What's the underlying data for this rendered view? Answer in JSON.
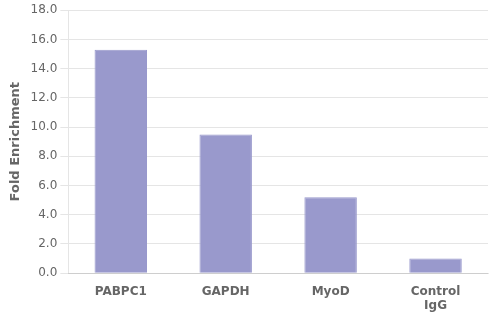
{
  "chart_data": {
    "type": "bar",
    "categories": [
      "PABPC1",
      "GAPDH",
      "MyoD",
      "Control\nIgG"
    ],
    "values": [
      15.3,
      9.5,
      5.2,
      1.0
    ],
    "color": "#9999CC",
    "ylabel": "Fold Enrichment",
    "ylim": [
      0,
      18.0
    ],
    "yticks": [
      {
        "value": 0.0,
        "label": "0.0"
      },
      {
        "value": 2.0,
        "label": "2.0"
      },
      {
        "value": 4.0,
        "label": "4.0"
      },
      {
        "value": 6.0,
        "label": "6.0"
      },
      {
        "value": 8.0,
        "label": "8.0"
      },
      {
        "value": 10.0,
        "label": "10.0"
      },
      {
        "value": 12.0,
        "label": "12.0"
      },
      {
        "value": 14.0,
        "label": "14.0"
      },
      {
        "value": 16.0,
        "label": "16.0"
      },
      {
        "value": 18.0,
        "label": "18.0"
      }
    ],
    "grid": true
  }
}
